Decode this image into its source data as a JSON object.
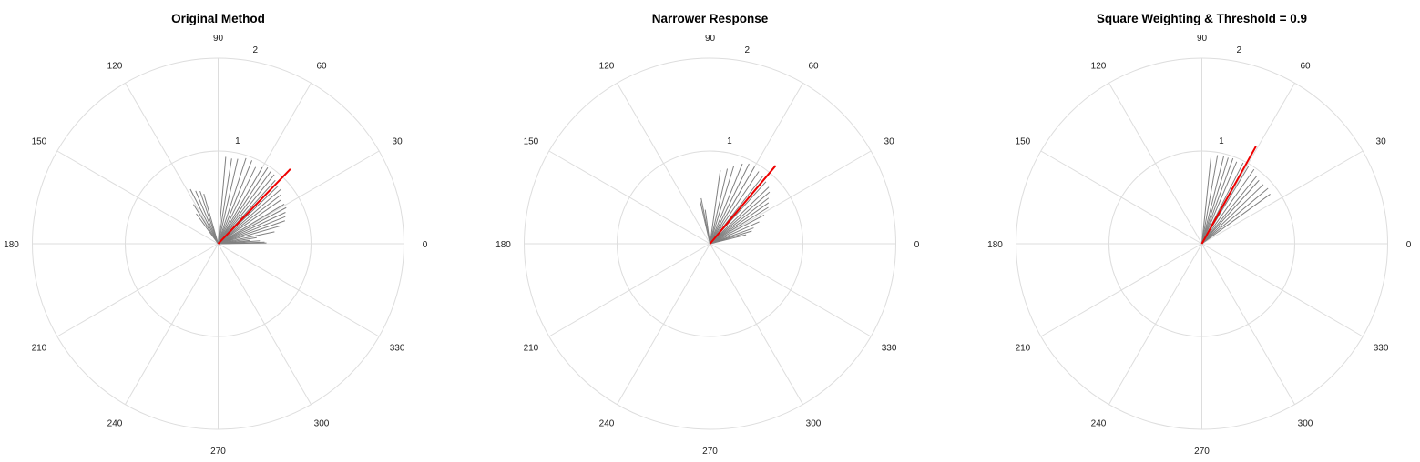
{
  "colors": {
    "background": "#ffffff",
    "grid": "#dddddd",
    "spoke": "#808080",
    "mean_vector": "#ee0000",
    "text": "#222222"
  },
  "chart_data": [
    {
      "type": "polar",
      "title": "Original Method",
      "theta_unit": "degrees",
      "theta_ticks": [
        "0",
        "30",
        "60",
        "90",
        "120",
        "150",
        "180",
        "210",
        "240",
        "270",
        "300",
        "330"
      ],
      "r_ticks": [
        "1",
        "2"
      ],
      "rlim": [
        0,
        2
      ],
      "grid": true,
      "series": [
        {
          "role": "spokes",
          "points": [
            {
              "theta": 1,
              "r": 0.52
            },
            {
              "theta": 2,
              "r": 0.5
            },
            {
              "theta": 4,
              "r": 0.45
            },
            {
              "theta": 6,
              "r": 0.35
            },
            {
              "theta": 9,
              "r": 0.42
            },
            {
              "theta": 12,
              "r": 0.62
            },
            {
              "theta": 16,
              "r": 0.7
            },
            {
              "theta": 19,
              "r": 0.76
            },
            {
              "theta": 22,
              "r": 0.78
            },
            {
              "theta": 25,
              "r": 0.8
            },
            {
              "theta": 28,
              "r": 0.83
            },
            {
              "theta": 31,
              "r": 0.83
            },
            {
              "theta": 35,
              "r": 0.82
            },
            {
              "theta": 38,
              "r": 0.86
            },
            {
              "theta": 41,
              "r": 0.9
            },
            {
              "theta": 44,
              "r": 0.9
            },
            {
              "theta": 48,
              "r": 0.92
            },
            {
              "theta": 51,
              "r": 0.96
            },
            {
              "theta": 54,
              "r": 0.97
            },
            {
              "theta": 57,
              "r": 0.98
            },
            {
              "theta": 60,
              "r": 0.95
            },
            {
              "theta": 64,
              "r": 0.92
            },
            {
              "theta": 68,
              "r": 0.97
            },
            {
              "theta": 72,
              "r": 0.97
            },
            {
              "theta": 77,
              "r": 0.94
            },
            {
              "theta": 81,
              "r": 0.93
            },
            {
              "theta": 85,
              "r": 0.94
            },
            {
              "theta": 106,
              "r": 0.56
            },
            {
              "theta": 109,
              "r": 0.6
            },
            {
              "theta": 113,
              "r": 0.62
            },
            {
              "theta": 117,
              "r": 0.66
            },
            {
              "theta": 122,
              "r": 0.5
            },
            {
              "theta": 126,
              "r": 0.4
            }
          ]
        },
        {
          "role": "mean-vector",
          "points": [
            {
              "theta": 46,
              "r": 1.12
            }
          ]
        }
      ]
    },
    {
      "type": "polar",
      "title": "Narrower Response",
      "theta_unit": "degrees",
      "theta_ticks": [
        "0",
        "30",
        "60",
        "90",
        "120",
        "150",
        "180",
        "210",
        "240",
        "270",
        "300",
        "330"
      ],
      "r_ticks": [
        "1",
        "2"
      ],
      "rlim": [
        0,
        2
      ],
      "grid": true,
      "series": [
        {
          "role": "spokes",
          "points": [
            {
              "theta": 14,
              "r": 0.4
            },
            {
              "theta": 17,
              "r": 0.47
            },
            {
              "theta": 20,
              "r": 0.5
            },
            {
              "theta": 24,
              "r": 0.58
            },
            {
              "theta": 28,
              "r": 0.66
            },
            {
              "theta": 32,
              "r": 0.74
            },
            {
              "theta": 35,
              "r": 0.77
            },
            {
              "theta": 38,
              "r": 0.8
            },
            {
              "theta": 41,
              "r": 0.85
            },
            {
              "theta": 44,
              "r": 0.88
            },
            {
              "theta": 48,
              "r": 0.9
            },
            {
              "theta": 52,
              "r": 0.93
            },
            {
              "theta": 56,
              "r": 0.94
            },
            {
              "theta": 60,
              "r": 0.96
            },
            {
              "theta": 64,
              "r": 0.96
            },
            {
              "theta": 68,
              "r": 0.93
            },
            {
              "theta": 73,
              "r": 0.88
            },
            {
              "theta": 77,
              "r": 0.83
            },
            {
              "theta": 82,
              "r": 0.8
            },
            {
              "theta": 98,
              "r": 0.37
            },
            {
              "theta": 101,
              "r": 0.5
            },
            {
              "theta": 103,
              "r": 0.47
            }
          ]
        },
        {
          "role": "mean-vector",
          "points": [
            {
              "theta": 50,
              "r": 1.1
            }
          ]
        }
      ]
    },
    {
      "type": "polar",
      "title": "Square Weighting & Threshold = 0.9",
      "theta_unit": "degrees",
      "theta_ticks": [
        "0",
        "30",
        "60",
        "90",
        "120",
        "150",
        "180",
        "210",
        "240",
        "270",
        "300",
        "330"
      ],
      "r_ticks": [
        "1",
        "2"
      ],
      "rlim": [
        0,
        2
      ],
      "grid": true,
      "series": [
        {
          "role": "spokes",
          "points": [
            {
              "theta": 36,
              "r": 0.91
            },
            {
              "theta": 40,
              "r": 0.93
            },
            {
              "theta": 44,
              "r": 0.92
            },
            {
              "theta": 48,
              "r": 0.92
            },
            {
              "theta": 51,
              "r": 0.94
            },
            {
              "theta": 55,
              "r": 0.98
            },
            {
              "theta": 59,
              "r": 0.98
            },
            {
              "theta": 63,
              "r": 0.98
            },
            {
              "theta": 67,
              "r": 0.96
            },
            {
              "theta": 70,
              "r": 0.98
            },
            {
              "theta": 73,
              "r": 0.97
            },
            {
              "theta": 76,
              "r": 0.97
            },
            {
              "theta": 80,
              "r": 0.97
            },
            {
              "theta": 84,
              "r": 0.95
            }
          ]
        },
        {
          "role": "mean-vector",
          "points": [
            {
              "theta": 61,
              "r": 1.2
            }
          ]
        }
      ]
    }
  ]
}
